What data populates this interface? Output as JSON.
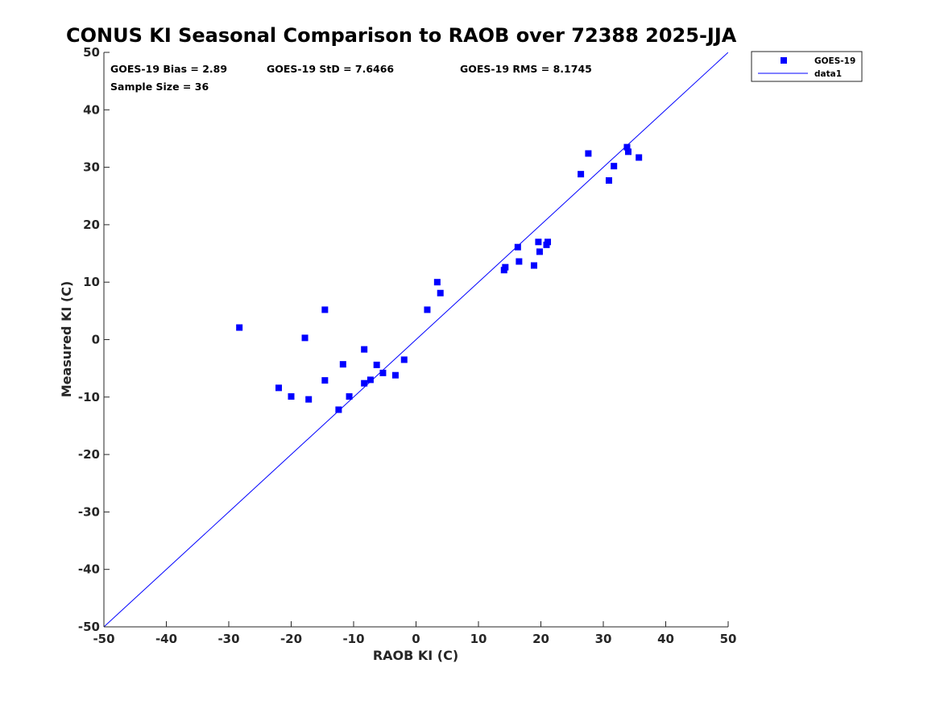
{
  "chart_data": {
    "type": "scatter",
    "title": "CONUS KI Seasonal Comparison to RAOB over 72388 2025-JJA",
    "xlabel": "RAOB KI (C)",
    "ylabel": "Measured KI (C)",
    "xlim": [
      -50,
      50
    ],
    "ylim": [
      -50,
      50
    ],
    "xticks": [
      -50,
      -40,
      -30,
      -20,
      -10,
      0,
      10,
      20,
      30,
      40,
      50
    ],
    "yticks": [
      -50,
      -40,
      -30,
      -20,
      -10,
      0,
      10,
      20,
      30,
      40,
      50
    ],
    "grid": false,
    "legend": {
      "position": "top-right-outside",
      "entries": [
        "GOES-19",
        "data1"
      ]
    },
    "stats": {
      "bias": "GOES-19 Bias = 2.89",
      "std": "GOES-19 StD = 7.6466",
      "rms": "GOES-19 RMS = 8.1745",
      "sample": "Sample Size = 36"
    },
    "colors": {
      "marker": "#0000ff",
      "line": "#0000ff"
    },
    "series": [
      {
        "name": "GOES-19",
        "style": "square-marker",
        "points": [
          [
            -28.3,
            2.1
          ],
          [
            -22.0,
            -8.4
          ],
          [
            -20.0,
            -9.9
          ],
          [
            -17.8,
            0.3
          ],
          [
            -17.2,
            -10.4
          ],
          [
            -14.6,
            5.2
          ],
          [
            -14.6,
            -7.1
          ],
          [
            -12.4,
            -12.2
          ],
          [
            -11.7,
            -4.3
          ],
          [
            -10.7,
            -9.9
          ],
          [
            -8.3,
            -1.7
          ],
          [
            -8.3,
            -7.6
          ],
          [
            -7.3,
            -7.0
          ],
          [
            -6.3,
            -4.4
          ],
          [
            -5.3,
            -5.8
          ],
          [
            -3.3,
            -6.2
          ],
          [
            -1.9,
            -3.5
          ],
          [
            1.8,
            5.2
          ],
          [
            3.4,
            10.0
          ],
          [
            3.9,
            8.1
          ],
          [
            14.1,
            12.1
          ],
          [
            14.3,
            12.6
          ],
          [
            16.3,
            16.1
          ],
          [
            16.5,
            13.6
          ],
          [
            18.9,
            12.9
          ],
          [
            19.6,
            17.0
          ],
          [
            19.8,
            15.3
          ],
          [
            20.9,
            16.5
          ],
          [
            21.1,
            17.0
          ],
          [
            26.4,
            28.8
          ],
          [
            27.6,
            32.4
          ],
          [
            30.9,
            27.7
          ],
          [
            31.7,
            30.2
          ],
          [
            33.8,
            33.5
          ],
          [
            34.0,
            32.7
          ],
          [
            35.7,
            31.7
          ]
        ]
      },
      {
        "name": "data1",
        "style": "line",
        "points": [
          [
            -50,
            -50
          ],
          [
            50,
            50
          ]
        ]
      }
    ]
  }
}
